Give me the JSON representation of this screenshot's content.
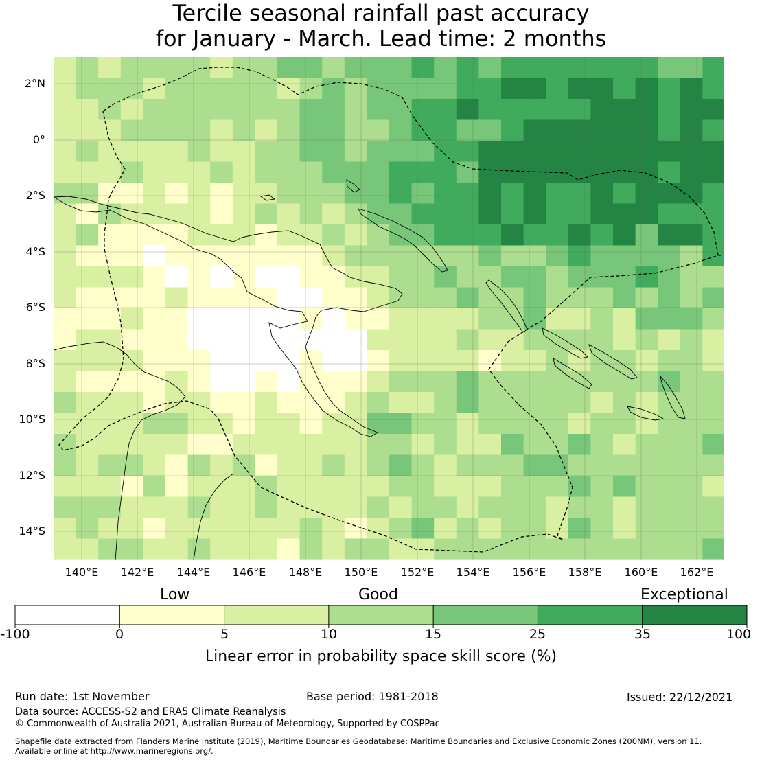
{
  "title_line1": "Tercile seasonal rainfall past accuracy",
  "title_line2": "for January - March. Lead time: 2 months",
  "lat_labels": [
    "2°N",
    "0°",
    "2°S",
    "4°S",
    "6°S",
    "8°S",
    "10°S",
    "12°S",
    "14°S"
  ],
  "lon_labels": [
    "140°E",
    "142°E",
    "144°E",
    "146°E",
    "148°E",
    "150°E",
    "152°E",
    "154°E",
    "156°E",
    "158°E",
    "160°E",
    "162°E"
  ],
  "categories": {
    "low": "Low",
    "good": "Good",
    "exceptional": "Exceptional"
  },
  "colorbar": {
    "ticks": [
      "-100",
      "0",
      "5",
      "10",
      "15",
      "25",
      "35",
      "100"
    ],
    "colors": [
      "#ffffff",
      "#ffffcc",
      "#d9f0a3",
      "#addd8e",
      "#78c679",
      "#41ab5d",
      "#238443"
    ],
    "label": "Linear error in probability space skill score (%)"
  },
  "footer": {
    "run_date": "Run date: 1st November",
    "base_period": "Base period: 1981-2018",
    "issued": "Issued: 22/12/2021",
    "data_source": "Data source: ACCESS-S2 and ERA5 Climate Reanalysis",
    "copyright": "© Commonwealth of Australia 2021, Australian Bureau of Meteorology, Supported by COSPPac",
    "shapefile_line1": "Shapefile data extracted from Flanders Marine Institute (2019), Maritime Boundaries Geodatabase: Maritime Boundaries and Exclusive Economic Zones (200NM), version 11.",
    "shapefile_line2": "Available online at http://www.marineregions.org/."
  }
}
